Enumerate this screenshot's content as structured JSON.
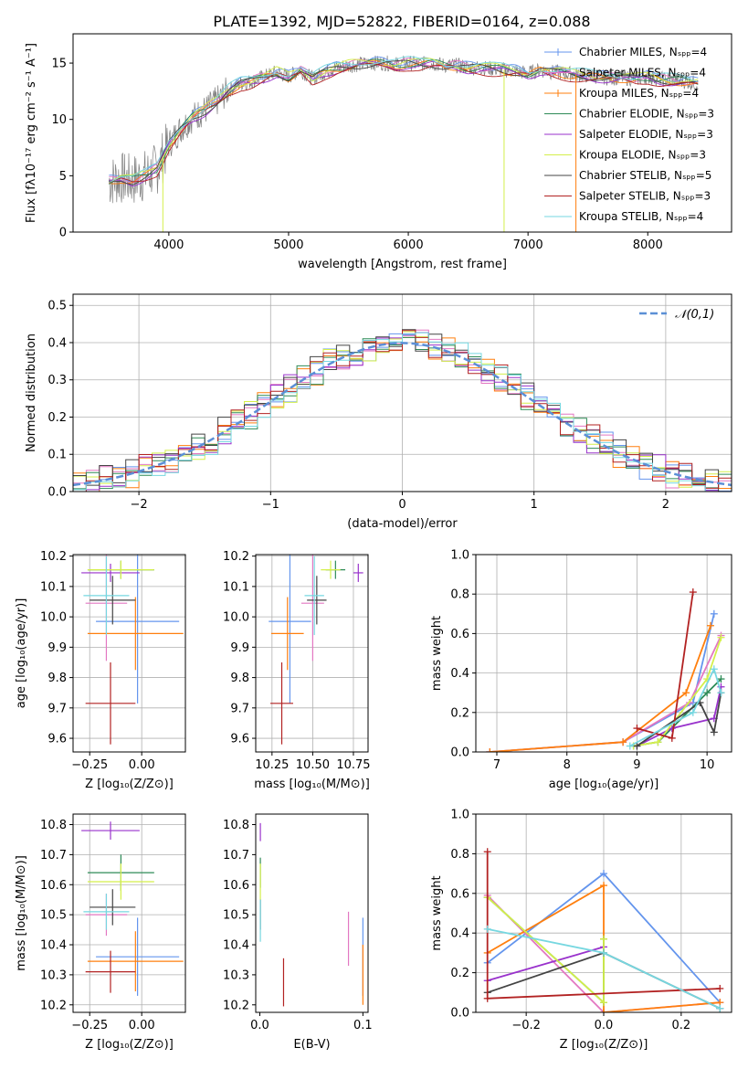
{
  "figure_title": "PLATE=1392, MJD=52822, FIBERID=0164, z=0.088",
  "colors": {
    "Chabrier MILES": "#6495ed",
    "Salpeter MILES": "#e377c2",
    "Kroupa MILES": "#ff7f0e",
    "Chabrier ELODIE": "#2e8b57",
    "Salpeter ELODIE": "#9932cc",
    "Kroupa ELODIE": "#d4ef4b",
    "Chabrier STELIB": "#444444",
    "Salpeter STELIB": "#b22222",
    "Kroupa STELIB": "#76d7e0",
    "data": "#808080",
    "normal": "#5b8fd6"
  },
  "chart_data": [
    {
      "id": "spectrum",
      "type": "line",
      "xlabel": "wavelength [Angstrom, rest frame]",
      "ylabel": "Flux [fλ10⁻¹⁷ erg cm⁻² s⁻¹ A⁻¹]",
      "xlim": [
        3200,
        8700
      ],
      "ylim": [
        0,
        17.6
      ],
      "xticks": [
        4000,
        5000,
        6000,
        7000,
        8000
      ],
      "yticks": [
        0,
        5,
        10,
        15
      ],
      "legend_position": "right",
      "legend": [
        "Chabrier MILES, Nₛₚₚ=4",
        "Salpeter MILES, Nₛₚₚ=4",
        "Kroupa MILES, Nₛₚₚ=4",
        "Chabrier ELODIE, Nₛₚₚ=3",
        "Salpeter ELODIE, Nₛₚₚ=3",
        "Kroupa ELODIE, Nₛₚₚ=3",
        "Chabrier STELIB, Nₛₚₚ=5",
        "Salpeter STELIB, Nₛₚₚ=3",
        "Kroupa STELIB, Nₛₚₚ=4"
      ],
      "continuum": [
        [
          3500,
          4.5
        ],
        [
          3600,
          4.8
        ],
        [
          3700,
          4.6
        ],
        [
          3800,
          5.0
        ],
        [
          3900,
          5.6
        ],
        [
          4000,
          7.8
        ],
        [
          4100,
          9.2
        ],
        [
          4200,
          10.2
        ],
        [
          4300,
          10.8
        ],
        [
          4400,
          11.6
        ],
        [
          4500,
          12.6
        ],
        [
          4600,
          13.2
        ],
        [
          4700,
          13.4
        ],
        [
          4800,
          13.8
        ],
        [
          4900,
          14.2
        ],
        [
          5000,
          13.8
        ],
        [
          5100,
          14.4
        ],
        [
          5200,
          13.6
        ],
        [
          5300,
          14.2
        ],
        [
          5400,
          14.6
        ],
        [
          5500,
          14.8
        ],
        [
          5600,
          14.9
        ],
        [
          5700,
          15.0
        ],
        [
          5800,
          15.0
        ],
        [
          5900,
          14.9
        ],
        [
          6000,
          15.0
        ],
        [
          6100,
          14.9
        ],
        [
          6200,
          15.0
        ],
        [
          6300,
          14.8
        ],
        [
          6400,
          14.8
        ],
        [
          6500,
          14.6
        ],
        [
          6600,
          14.6
        ],
        [
          6700,
          14.5
        ],
        [
          6800,
          14.4
        ],
        [
          6900,
          14.3
        ],
        [
          7000,
          14.1
        ],
        [
          7100,
          14.4
        ],
        [
          7200,
          14.2
        ],
        [
          7300,
          14.1
        ],
        [
          7400,
          14.0
        ],
        [
          7500,
          13.9
        ],
        [
          7600,
          13.8
        ],
        [
          7700,
          13.7
        ],
        [
          7800,
          13.7
        ],
        [
          7900,
          13.6
        ],
        [
          8000,
          13.8
        ],
        [
          8100,
          13.6
        ],
        [
          8200,
          13.5
        ],
        [
          8300,
          13.4
        ],
        [
          8400,
          13.2
        ]
      ],
      "spikes": [
        [
          3950,
          0
        ],
        [
          6800,
          0
        ],
        [
          7400,
          0
        ]
      ]
    },
    {
      "id": "residuals",
      "type": "histogram",
      "xlabel": "(data-model)/error",
      "ylabel": "Normed distribution",
      "xlim": [
        -2.5,
        2.5
      ],
      "ylim": [
        0,
        0.53
      ],
      "xticks": [
        -2,
        -1,
        0,
        1,
        2
      ],
      "yticks": [
        0.0,
        0.1,
        0.2,
        0.3,
        0.4,
        0.5
      ],
      "grid": true,
      "legend_position": "top-right",
      "legend": [
        "𝒩(0,1)"
      ],
      "bin_width": 0.1,
      "bin_start": -2.5
    },
    {
      "id": "age-vs-Z",
      "type": "errorbar",
      "xlabel": "Z [log₁₀(Z/Z⊙)]",
      "ylabel": "age  [log₁₀(age/yr)]",
      "xlim": [
        -0.33,
        0.21
      ],
      "ylim": [
        9.555,
        10.205
      ],
      "xticks": [
        -0.25,
        0.0
      ],
      "yticks": [
        9.6,
        9.7,
        9.8,
        9.9,
        10.0,
        10.1,
        10.2
      ],
      "grid": true,
      "points": [
        {
          "model": "Chabrier MILES",
          "x": -0.02,
          "xerr": 0.2,
          "y": 9.985,
          "yerr": 0.27
        },
        {
          "model": "Salpeter MILES",
          "x": -0.17,
          "xerr": 0.1,
          "y": 10.045,
          "yerr": 0.19
        },
        {
          "model": "Kroupa MILES",
          "x": -0.03,
          "xerr": 0.23,
          "y": 9.945,
          "yerr": 0.12
        },
        {
          "model": "Chabrier ELODIE",
          "x": -0.1,
          "xerr": 0.16,
          "y": 10.155,
          "yerr": 0.03
        },
        {
          "model": "Salpeter ELODIE",
          "x": -0.15,
          "xerr": 0.14,
          "y": 10.145,
          "yerr": 0.03
        },
        {
          "model": "Kroupa ELODIE",
          "x": -0.1,
          "xerr": 0.16,
          "y": 10.155,
          "yerr": 0.03
        },
        {
          "model": "Chabrier STELIB",
          "x": -0.14,
          "xerr": 0.11,
          "y": 10.055,
          "yerr": 0.08
        },
        {
          "model": "Salpeter STELIB",
          "x": -0.15,
          "xerr": 0.12,
          "y": 9.715,
          "yerr": 0.135
        },
        {
          "model": "Kroupa STELIB",
          "x": -0.17,
          "xerr": 0.11,
          "y": 10.07,
          "yerr": 0.13
        }
      ]
    },
    {
      "id": "age-vs-mass",
      "type": "errorbar",
      "xlabel": "mass [log₁₀(M/M⊙)]",
      "ylabel": "",
      "xlim": [
        10.15,
        10.84
      ],
      "ylim": [
        9.555,
        10.205
      ],
      "xticks": [
        10.25,
        10.5,
        10.75
      ],
      "yticks": [
        9.6,
        9.7,
        9.8,
        9.9,
        10.0,
        10.1,
        10.2
      ],
      "grid": true,
      "points": [
        {
          "model": "Chabrier MILES",
          "x": 10.36,
          "xerr": 0.13,
          "y": 9.985,
          "yerr": 0.27
        },
        {
          "model": "Salpeter MILES",
          "x": 10.5,
          "xerr": 0.07,
          "y": 10.045,
          "yerr": 0.19
        },
        {
          "model": "Kroupa MILES",
          "x": 10.345,
          "xerr": 0.1,
          "y": 9.945,
          "yerr": 0.12
        },
        {
          "model": "Chabrier ELODIE",
          "x": 10.64,
          "xerr": 0.06,
          "y": 10.155,
          "yerr": 0.03
        },
        {
          "model": "Salpeter ELODIE",
          "x": 10.78,
          "xerr": 0.03,
          "y": 10.145,
          "yerr": 0.03
        },
        {
          "model": "Kroupa ELODIE",
          "x": 10.61,
          "xerr": 0.06,
          "y": 10.155,
          "yerr": 0.03
        },
        {
          "model": "Chabrier STELIB",
          "x": 10.525,
          "xerr": 0.06,
          "y": 10.055,
          "yerr": 0.08
        },
        {
          "model": "Salpeter STELIB",
          "x": 10.31,
          "xerr": 0.07,
          "y": 9.715,
          "yerr": 0.135
        },
        {
          "model": "Kroupa STELIB",
          "x": 10.51,
          "xerr": 0.06,
          "y": 10.07,
          "yerr": 0.13
        }
      ]
    },
    {
      "id": "weight-vs-age",
      "type": "line",
      "xlabel": "age  [log₁₀(age/yr)]",
      "ylabel": "mass weight",
      "xlim": [
        6.7,
        10.35
      ],
      "ylim": [
        0,
        1.0
      ],
      "xticks": [
        7,
        8,
        9,
        10
      ],
      "yticks": [
        0.0,
        0.2,
        0.4,
        0.6,
        0.8,
        1.0
      ],
      "grid": true,
      "series": [
        {
          "model": "Chabrier MILES",
          "x": [
            6.9,
            8.8,
            9.8,
            10.1
          ],
          "y": [
            0.0,
            0.05,
            0.25,
            0.7
          ]
        },
        {
          "model": "Salpeter MILES",
          "x": [
            6.9,
            8.8,
            9.75,
            10.2
          ],
          "y": [
            0.0,
            0.05,
            0.25,
            0.59
          ]
        },
        {
          "model": "Kroupa MILES",
          "x": [
            6.9,
            8.8,
            9.7,
            10.05
          ],
          "y": [
            0.0,
            0.05,
            0.3,
            0.64
          ]
        },
        {
          "model": "Chabrier ELODIE",
          "x": [
            8.95,
            9.3,
            10.0,
            10.2
          ],
          "y": [
            0.03,
            0.05,
            0.3,
            0.37
          ]
        },
        {
          "model": "Salpeter ELODIE",
          "x": [
            9.0,
            9.5,
            10.1,
            10.2
          ],
          "y": [
            0.03,
            0.12,
            0.17,
            0.33
          ]
        },
        {
          "model": "Kroupa ELODIE",
          "x": [
            8.95,
            9.3,
            10.0,
            10.2
          ],
          "y": [
            0.03,
            0.05,
            0.37,
            0.58
          ]
        },
        {
          "model": "Chabrier STELIB",
          "x": [
            9.0,
            9.9,
            10.1,
            10.2
          ],
          "y": [
            0.03,
            0.25,
            0.1,
            0.3
          ]
        },
        {
          "model": "Salpeter STELIB",
          "x": [
            9.0,
            9.5,
            9.8
          ],
          "y": [
            0.12,
            0.07,
            0.81
          ]
        },
        {
          "model": "Kroupa STELIB",
          "x": [
            8.9,
            9.8,
            10.1,
            10.2
          ],
          "y": [
            0.03,
            0.2,
            0.42,
            0.3
          ]
        }
      ]
    },
    {
      "id": "mass-vs-Z",
      "type": "errorbar",
      "xlabel": "Z [log₁₀(Z/Z⊙)]",
      "ylabel": "mass [log₁₀(M/M⊙)]",
      "xlim": [
        -0.33,
        0.21
      ],
      "ylim": [
        10.175,
        10.835
      ],
      "xticks": [
        -0.25,
        0.0
      ],
      "yticks": [
        10.2,
        10.3,
        10.4,
        10.5,
        10.6,
        10.7,
        10.8
      ],
      "grid": true,
      "points": [
        {
          "model": "Chabrier MILES",
          "x": -0.02,
          "xerr": 0.2,
          "y": 10.36,
          "yerr": 0.13
        },
        {
          "model": "Salpeter MILES",
          "x": -0.17,
          "xerr": 0.1,
          "y": 10.5,
          "yerr": 0.07
        },
        {
          "model": "Kroupa MILES",
          "x": -0.03,
          "xerr": 0.23,
          "y": 10.345,
          "yerr": 0.1
        },
        {
          "model": "Chabrier ELODIE",
          "x": -0.1,
          "xerr": 0.16,
          "y": 10.64,
          "yerr": 0.06
        },
        {
          "model": "Salpeter ELODIE",
          "x": -0.15,
          "xerr": 0.14,
          "y": 10.78,
          "yerr": 0.03
        },
        {
          "model": "Kroupa ELODIE",
          "x": -0.1,
          "xerr": 0.16,
          "y": 10.61,
          "yerr": 0.06
        },
        {
          "model": "Chabrier STELIB",
          "x": -0.14,
          "xerr": 0.11,
          "y": 10.525,
          "yerr": 0.06
        },
        {
          "model": "Salpeter STELIB",
          "x": -0.15,
          "xerr": 0.12,
          "y": 10.31,
          "yerr": 0.07
        },
        {
          "model": "Kroupa STELIB",
          "x": -0.17,
          "xerr": 0.11,
          "y": 10.51,
          "yerr": 0.06
        }
      ]
    },
    {
      "id": "mass-vs-EBV",
      "type": "errorbar",
      "xlabel": "E(B-V)",
      "ylabel": "",
      "xlim": [
        -0.004,
        0.105
      ],
      "ylim": [
        10.175,
        10.835
      ],
      "xticks": [
        0.0,
        0.1
      ],
      "yticks": [
        10.2,
        10.3,
        10.4,
        10.5,
        10.6,
        10.7,
        10.8
      ],
      "grid": false,
      "points": [
        {
          "model": "Chabrier MILES",
          "x": 0.1,
          "xerr": 0,
          "y": 10.36,
          "yerr": 0.13
        },
        {
          "model": "Salpeter MILES",
          "x": 0.086,
          "xerr": 0,
          "y": 10.42,
          "yerr": 0.09
        },
        {
          "model": "Kroupa MILES",
          "x": 0.1,
          "xerr": 0,
          "y": 10.3,
          "yerr": 0.1
        },
        {
          "model": "Chabrier ELODIE",
          "x": 0.0005,
          "xerr": 0,
          "y": 10.64,
          "yerr": 0.05
        },
        {
          "model": "Salpeter ELODIE",
          "x": 0.0005,
          "xerr": 0,
          "y": 10.775,
          "yerr": 0.03
        },
        {
          "model": "Kroupa ELODIE",
          "x": 0.0005,
          "xerr": 0,
          "y": 10.61,
          "yerr": 0.06
        },
        {
          "model": "Chabrier STELIB",
          "x": 0.0005,
          "xerr": 0,
          "y": 10.5,
          "yerr": 0.05
        },
        {
          "model": "Salpeter STELIB",
          "x": 0.023,
          "xerr": 0,
          "y": 10.275,
          "yerr": 0.08
        },
        {
          "model": "Kroupa STELIB",
          "x": 0.0005,
          "xerr": 0,
          "y": 10.48,
          "yerr": 0.07
        }
      ]
    },
    {
      "id": "weight-vs-Z",
      "type": "line",
      "xlabel": "Z [log₁₀(Z/Z⊙)]",
      "ylabel": "mass weight",
      "xlim": [
        -0.33,
        0.33
      ],
      "ylim": [
        0,
        1.0
      ],
      "xticks": [
        -0.2,
        0.0,
        0.2
      ],
      "yticks": [
        0.0,
        0.2,
        0.4,
        0.6,
        0.8,
        1.0
      ],
      "grid": true,
      "series": [
        {
          "model": "Chabrier MILES",
          "x": [
            -0.3,
            0.0,
            0.3
          ],
          "y": [
            0.25,
            0.7,
            0.05
          ]
        },
        {
          "model": "Salpeter MILES",
          "x": [
            -0.3,
            0.0,
            0.3
          ],
          "y": [
            0.59,
            0.0,
            0.05
          ]
        },
        {
          "model": "Kroupa MILES",
          "x": [
            -0.3,
            0.0,
            0.0,
            0.3
          ],
          "y": [
            0.3,
            0.64,
            0.0,
            0.05
          ]
        },
        {
          "model": "Chabrier ELODIE",
          "x": [
            -0.3,
            0.0,
            0.0
          ],
          "y": [
            0.58,
            0.05,
            0.37
          ]
        },
        {
          "model": "Salpeter ELODIE",
          "x": [
            -0.3,
            0.0
          ],
          "y": [
            0.16,
            0.33
          ]
        },
        {
          "model": "Kroupa ELODIE",
          "x": [
            -0.3,
            0.0,
            0.0
          ],
          "y": [
            0.58,
            0.05,
            0.37
          ]
        },
        {
          "model": "Chabrier STELIB",
          "x": [
            -0.3,
            0.0,
            0.3
          ],
          "y": [
            0.1,
            0.3,
            0.02
          ]
        },
        {
          "model": "Salpeter STELIB",
          "x": [
            -0.3,
            -0.3,
            0.3
          ],
          "y": [
            0.81,
            0.07,
            0.12
          ]
        },
        {
          "model": "Kroupa STELIB",
          "x": [
            -0.3,
            0.0,
            0.3
          ],
          "y": [
            0.42,
            0.3,
            0.02
          ]
        }
      ]
    }
  ]
}
